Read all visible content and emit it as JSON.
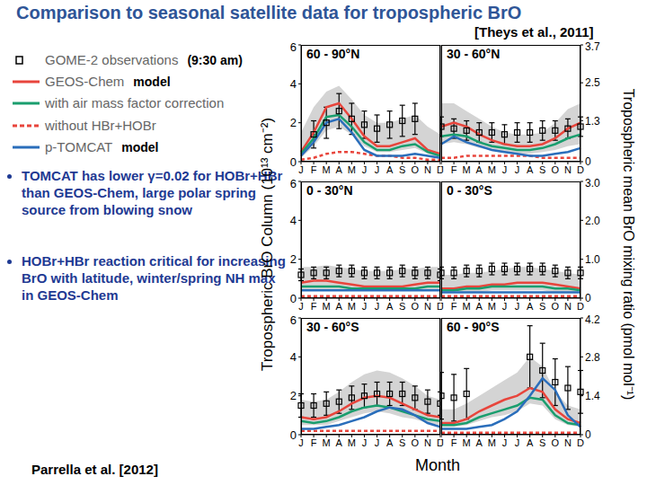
{
  "title": "Comparison to seasonal satellite data for tropospheric BrO",
  "reference": "[Theys et al., 2011]",
  "source": "Parrella et al. [2012]",
  "bullets": [
    "TOMCAT has lower γ=0.02 for HOBr+HBr than GEOS-Chem, large polar spring source from blowing snow",
    "HOBr+HBr reaction critical for increasing BrO with latitude, winter/spring NH max in GEOS-Chem"
  ],
  "legend_notes": [
    "(9:30 am)",
    "model",
    null,
    null,
    "model"
  ],
  "y_label": "Tropospheric BrO Column (10¹³ cm⁻²)",
  "y2_label": "Tropospheric mean BrO mixing ratio (pmol mol⁻¹)",
  "x_label": "Month",
  "chart_data": [
    {
      "type": "line",
      "title": "60 - 90°N",
      "categories": [
        "J",
        "F",
        "M",
        "A",
        "M",
        "J",
        "J",
        "A",
        "S",
        "O",
        "N",
        "D"
      ],
      "ylim": [
        0,
        6
      ],
      "yticks": [
        0,
        2,
        4,
        6
      ],
      "band": [
        [
          0.2,
          1.5
        ],
        [
          0.8,
          2.8
        ],
        [
          1.6,
          3.6
        ],
        [
          1.8,
          3.9
        ],
        [
          1.4,
          3.2
        ],
        [
          0.8,
          2.4
        ],
        [
          0.5,
          2.0
        ],
        [
          0.5,
          2.0
        ],
        [
          0.6,
          2.2
        ],
        [
          0.7,
          2.4
        ],
        [
          0.4,
          1.8
        ],
        [
          0.2,
          1.4
        ]
      ],
      "series": [
        {
          "name": "GOME-2 observations",
          "type": "scatter",
          "marker": "square",
          "color": "#000000",
          "values": [
            null,
            1.4,
            2.0,
            2.6,
            2.2,
            1.9,
            1.7,
            1.9,
            2.1,
            2.2,
            null,
            null
          ],
          "error": [
            null,
            0.7,
            0.8,
            0.9,
            0.8,
            0.7,
            0.7,
            0.7,
            0.8,
            0.8,
            null,
            null
          ]
        },
        {
          "name": "GEOS-Chem",
          "color": "#e8453c",
          "values": [
            0.5,
            1.5,
            2.8,
            3.0,
            2.2,
            1.3,
            0.8,
            0.8,
            1.0,
            1.2,
            0.6,
            0.4
          ]
        },
        {
          "name": "with air mass factor correction",
          "color": "#1a9e6e",
          "values": [
            0.4,
            1.2,
            2.3,
            2.4,
            1.8,
            1.0,
            0.6,
            0.6,
            0.8,
            0.9,
            0.5,
            0.3
          ]
        },
        {
          "name": "without HBr+HOBr",
          "color": "#e8453c",
          "line_style": "dashed",
          "values": [
            0.1,
            0.2,
            0.4,
            0.5,
            0.5,
            0.4,
            0.3,
            0.3,
            0.2,
            0.2,
            0.1,
            0.1
          ]
        },
        {
          "name": "p-TOMCAT",
          "color": "#2a6ebb",
          "values": [
            0.3,
            1.0,
            2.0,
            2.2,
            1.5,
            0.6,
            0.3,
            0.3,
            0.3,
            0.4,
            0.3,
            0.2
          ]
        }
      ]
    },
    {
      "type": "line",
      "title": "30 - 60°N",
      "categories": [
        "J",
        "F",
        "M",
        "A",
        "M",
        "J",
        "J",
        "A",
        "S",
        "O",
        "N",
        "D"
      ],
      "ylim": [
        0,
        6
      ],
      "y2lim": [
        0,
        3.7
      ],
      "y2ticks": [
        0,
        1.3,
        2.5,
        3.7
      ],
      "band": [
        [
          0.9,
          3.0
        ],
        [
          1.0,
          3.0
        ],
        [
          0.9,
          2.6
        ],
        [
          0.7,
          2.2
        ],
        [
          0.6,
          1.8
        ],
        [
          0.5,
          1.5
        ],
        [
          0.4,
          1.4
        ],
        [
          0.4,
          1.4
        ],
        [
          0.5,
          1.5
        ],
        [
          0.6,
          2.0
        ],
        [
          0.8,
          2.7
        ],
        [
          0.9,
          3.0
        ]
      ],
      "series": [
        {
          "name": "GOME-2 observations",
          "type": "scatter",
          "marker": "square",
          "color": "#000000",
          "values": [
            1.8,
            1.7,
            1.6,
            1.5,
            1.5,
            1.4,
            1.5,
            1.5,
            1.6,
            1.6,
            1.7,
            1.8
          ],
          "error": [
            0.5,
            0.5,
            0.5,
            0.5,
            0.5,
            0.5,
            0.5,
            0.5,
            0.5,
            0.5,
            0.5,
            0.5
          ]
        },
        {
          "name": "GEOS-Chem",
          "color": "#e8453c",
          "values": [
            1.8,
            2.0,
            1.8,
            1.4,
            1.1,
            0.9,
            0.8,
            0.8,
            0.9,
            1.2,
            1.7,
            2.0
          ]
        },
        {
          "name": "with air mass factor correction",
          "color": "#1a9e6e",
          "values": [
            1.3,
            1.4,
            1.3,
            1.0,
            0.8,
            0.7,
            0.6,
            0.6,
            0.7,
            0.9,
            1.2,
            1.4
          ]
        },
        {
          "name": "without HBr+HOBr",
          "color": "#e8453c",
          "line_style": "dashed",
          "values": [
            0.2,
            0.2,
            0.3,
            0.3,
            0.3,
            0.3,
            0.3,
            0.3,
            0.2,
            0.2,
            0.2,
            0.2
          ]
        },
        {
          "name": "p-TOMCAT",
          "color": "#2a6ebb",
          "values": [
            0.9,
            1.3,
            1.0,
            0.8,
            0.6,
            0.5,
            0.4,
            0.3,
            0.3,
            0.4,
            0.5,
            0.7
          ]
        }
      ]
    },
    {
      "type": "line",
      "title": "0 - 30°N",
      "categories": [
        "J",
        "F",
        "M",
        "A",
        "M",
        "J",
        "J",
        "A",
        "S",
        "O",
        "N",
        "D"
      ],
      "ylim": [
        0,
        6
      ],
      "yticks": [
        0,
        2,
        4,
        6
      ],
      "band": [
        [
          0.4,
          1.6
        ],
        [
          0.4,
          1.6
        ],
        [
          0.4,
          1.7
        ],
        [
          0.4,
          1.6
        ],
        [
          0.4,
          1.5
        ],
        [
          0.4,
          1.4
        ],
        [
          0.4,
          1.4
        ],
        [
          0.4,
          1.4
        ],
        [
          0.4,
          1.5
        ],
        [
          0.4,
          1.5
        ],
        [
          0.4,
          1.6
        ],
        [
          0.4,
          1.6
        ]
      ],
      "series": [
        {
          "name": "GOME-2 observations",
          "type": "scatter",
          "marker": "square",
          "color": "#000000",
          "values": [
            1.2,
            1.3,
            1.3,
            1.4,
            1.4,
            1.3,
            1.3,
            1.3,
            1.4,
            1.3,
            1.3,
            1.2
          ],
          "error": [
            0.3,
            0.3,
            0.3,
            0.3,
            0.3,
            0.3,
            0.3,
            0.3,
            0.3,
            0.3,
            0.3,
            0.3
          ]
        },
        {
          "name": "GEOS-Chem",
          "color": "#e8453c",
          "values": [
            0.8,
            0.9,
            0.9,
            0.8,
            0.7,
            0.6,
            0.6,
            0.6,
            0.6,
            0.7,
            0.8,
            0.8
          ]
        },
        {
          "name": "with air mass factor correction",
          "color": "#1a9e6e",
          "values": [
            0.6,
            0.6,
            0.6,
            0.6,
            0.5,
            0.5,
            0.5,
            0.5,
            0.5,
            0.5,
            0.6,
            0.6
          ]
        },
        {
          "name": "without HBr+HOBr",
          "color": "#e8453c",
          "line_style": "dashed",
          "values": [
            0.1,
            0.1,
            0.1,
            0.1,
            0.1,
            0.1,
            0.1,
            0.1,
            0.1,
            0.1,
            0.1,
            0.1
          ]
        },
        {
          "name": "p-TOMCAT",
          "color": "#2a6ebb",
          "values": [
            0.4,
            0.4,
            0.4,
            0.4,
            0.4,
            0.4,
            0.4,
            0.4,
            0.4,
            0.4,
            0.4,
            0.4
          ]
        }
      ]
    },
    {
      "type": "line",
      "title": "0 - 30°S",
      "categories": [
        "J",
        "F",
        "M",
        "A",
        "M",
        "J",
        "J",
        "A",
        "S",
        "O",
        "N",
        "D"
      ],
      "ylim": [
        0,
        6
      ],
      "y2lim": [
        0,
        3.0
      ],
      "y2ticks": [
        0,
        {
          "value": 1,
          "label": "1.0"
        },
        {
          "value": 2,
          "label": "2.0"
        },
        {
          "value": 3,
          "label": "3.0"
        }
      ],
      "band": [
        [
          0.3,
          1.2
        ],
        [
          0.3,
          1.2
        ],
        [
          0.3,
          1.3
        ],
        [
          0.3,
          1.3
        ],
        [
          0.4,
          1.4
        ],
        [
          0.4,
          1.5
        ],
        [
          0.4,
          1.6
        ],
        [
          0.4,
          1.6
        ],
        [
          0.4,
          1.5
        ],
        [
          0.3,
          1.4
        ],
        [
          0.3,
          1.3
        ],
        [
          0.3,
          1.2
        ]
      ],
      "series": [
        {
          "name": "GOME-2 observations",
          "type": "scatter",
          "marker": "square",
          "color": "#000000",
          "values": [
            1.3,
            1.3,
            1.4,
            1.4,
            1.5,
            1.5,
            1.5,
            1.5,
            1.5,
            1.4,
            1.3,
            1.3
          ],
          "error": [
            0.3,
            0.3,
            0.3,
            0.3,
            0.3,
            0.3,
            0.3,
            0.3,
            0.3,
            0.3,
            0.3,
            0.3
          ]
        },
        {
          "name": "GEOS-Chem",
          "color": "#e8453c",
          "values": [
            0.5,
            0.5,
            0.6,
            0.6,
            0.7,
            0.7,
            0.8,
            0.8,
            0.8,
            0.7,
            0.6,
            0.5
          ]
        },
        {
          "name": "with air mass factor correction",
          "color": "#1a9e6e",
          "values": [
            0.4,
            0.4,
            0.5,
            0.5,
            0.6,
            0.6,
            0.6,
            0.6,
            0.6,
            0.5,
            0.5,
            0.4
          ]
        },
        {
          "name": "without HBr+HOBr",
          "color": "#e8453c",
          "line_style": "dashed",
          "values": [
            0.1,
            0.1,
            0.1,
            0.1,
            0.1,
            0.1,
            0.1,
            0.1,
            0.1,
            0.1,
            0.1,
            0.1
          ]
        },
        {
          "name": "p-TOMCAT",
          "color": "#2a6ebb",
          "values": [
            0.3,
            0.3,
            0.3,
            0.3,
            0.3,
            0.3,
            0.3,
            0.3,
            0.3,
            0.3,
            0.3,
            0.3
          ]
        }
      ]
    },
    {
      "type": "line",
      "title": "30 - 60°S",
      "categories": [
        "J",
        "F",
        "M",
        "A",
        "M",
        "J",
        "J",
        "A",
        "S",
        "O",
        "N",
        "D"
      ],
      "ylim": [
        0,
        6
      ],
      "yticks": [
        0,
        2,
        4,
        6
      ],
      "band": [
        [
          0.5,
          1.8
        ],
        [
          0.5,
          1.7
        ],
        [
          0.5,
          1.8
        ],
        [
          0.7,
          2.2
        ],
        [
          0.9,
          2.7
        ],
        [
          1.1,
          3.1
        ],
        [
          1.2,
          3.3
        ],
        [
          1.1,
          3.2
        ],
        [
          0.9,
          2.9
        ],
        [
          0.8,
          2.5
        ],
        [
          0.6,
          2.0
        ],
        [
          0.5,
          1.8
        ]
      ],
      "series": [
        {
          "name": "GOME-2 observations",
          "type": "scatter",
          "marker": "square",
          "color": "#000000",
          "values": [
            1.5,
            1.5,
            1.6,
            1.7,
            1.9,
            2.0,
            2.1,
            2.1,
            2.1,
            1.9,
            1.7,
            1.6
          ],
          "error": [
            0.6,
            0.6,
            0.6,
            0.6,
            0.6,
            0.6,
            0.6,
            0.6,
            0.6,
            0.6,
            0.6,
            0.6
          ]
        },
        {
          "name": "GEOS-Chem",
          "color": "#e8453c",
          "values": [
            0.9,
            0.8,
            0.9,
            1.2,
            1.6,
            1.9,
            2.0,
            1.9,
            1.6,
            1.3,
            1.0,
            0.9
          ]
        },
        {
          "name": "with air mass factor correction",
          "color": "#1a9e6e",
          "values": [
            0.7,
            0.6,
            0.7,
            0.9,
            1.2,
            1.4,
            1.5,
            1.4,
            1.2,
            1.0,
            0.8,
            0.7
          ]
        },
        {
          "name": "without HBr+HOBr",
          "color": "#e8453c",
          "line_style": "dashed",
          "values": [
            0.2,
            0.2,
            0.2,
            0.2,
            0.2,
            0.2,
            0.2,
            0.2,
            0.2,
            0.2,
            0.2,
            0.2
          ]
        },
        {
          "name": "p-TOMCAT",
          "color": "#2a6ebb",
          "values": [
            0.3,
            0.3,
            0.4,
            0.5,
            0.7,
            0.9,
            1.2,
            1.4,
            1.3,
            1.0,
            0.6,
            0.4
          ]
        }
      ]
    },
    {
      "type": "line",
      "title": "60 - 90°S",
      "categories": [
        "J",
        "F",
        "M",
        "A",
        "M",
        "J",
        "J",
        "A",
        "S",
        "O",
        "N",
        "D"
      ],
      "ylim": [
        0,
        6
      ],
      "y2lim": [
        0,
        4.2
      ],
      "y2ticks": [
        0,
        1.4,
        2.8,
        4.2
      ],
      "band": [
        [
          0.4,
          1.3
        ],
        [
          0.4,
          1.3
        ],
        [
          0.5,
          1.6
        ],
        [
          0.7,
          2.0
        ],
        [
          0.9,
          2.4
        ],
        [
          1.0,
          2.8
        ],
        [
          1.2,
          3.2
        ],
        [
          1.6,
          4.0
        ],
        [
          1.5,
          3.5
        ],
        [
          0.8,
          2.2
        ],
        [
          0.5,
          1.5
        ],
        [
          0.4,
          1.3
        ]
      ],
      "series": [
        {
          "name": "GOME-2 observations",
          "type": "scatter",
          "marker": "square",
          "color": "#000000",
          "values": [
            2.0,
            1.9,
            2.1,
            null,
            null,
            null,
            null,
            4.0,
            3.3,
            2.7,
            2.4,
            2.2
          ],
          "error": [
            1.2,
            1.2,
            1.3,
            null,
            null,
            null,
            null,
            1.6,
            1.4,
            1.2,
            1.1,
            1.1
          ]
        },
        {
          "name": "GEOS-Chem",
          "color": "#e8453c",
          "values": [
            0.6,
            0.6,
            0.8,
            1.2,
            1.5,
            1.8,
            2.0,
            2.4,
            2.2,
            1.3,
            0.8,
            0.6
          ]
        },
        {
          "name": "with air mass factor correction",
          "color": "#1a9e6e",
          "values": [
            0.5,
            0.5,
            0.6,
            0.9,
            1.1,
            1.3,
            1.5,
            1.9,
            1.8,
            1.0,
            0.6,
            0.5
          ]
        },
        {
          "name": "without HBr+HOBr",
          "color": "#e8453c",
          "line_style": "dashed",
          "values": [
            0.1,
            0.1,
            0.1,
            0.1,
            0.1,
            0.1,
            0.1,
            0.1,
            0.1,
            0.1,
            0.1,
            0.1
          ]
        },
        {
          "name": "p-TOMCAT",
          "color": "#2a6ebb",
          "values": [
            0.3,
            0.3,
            0.3,
            0.4,
            0.5,
            0.8,
            1.2,
            2.0,
            2.9,
            2.3,
            1.0,
            0.4
          ]
        }
      ]
    }
  ]
}
